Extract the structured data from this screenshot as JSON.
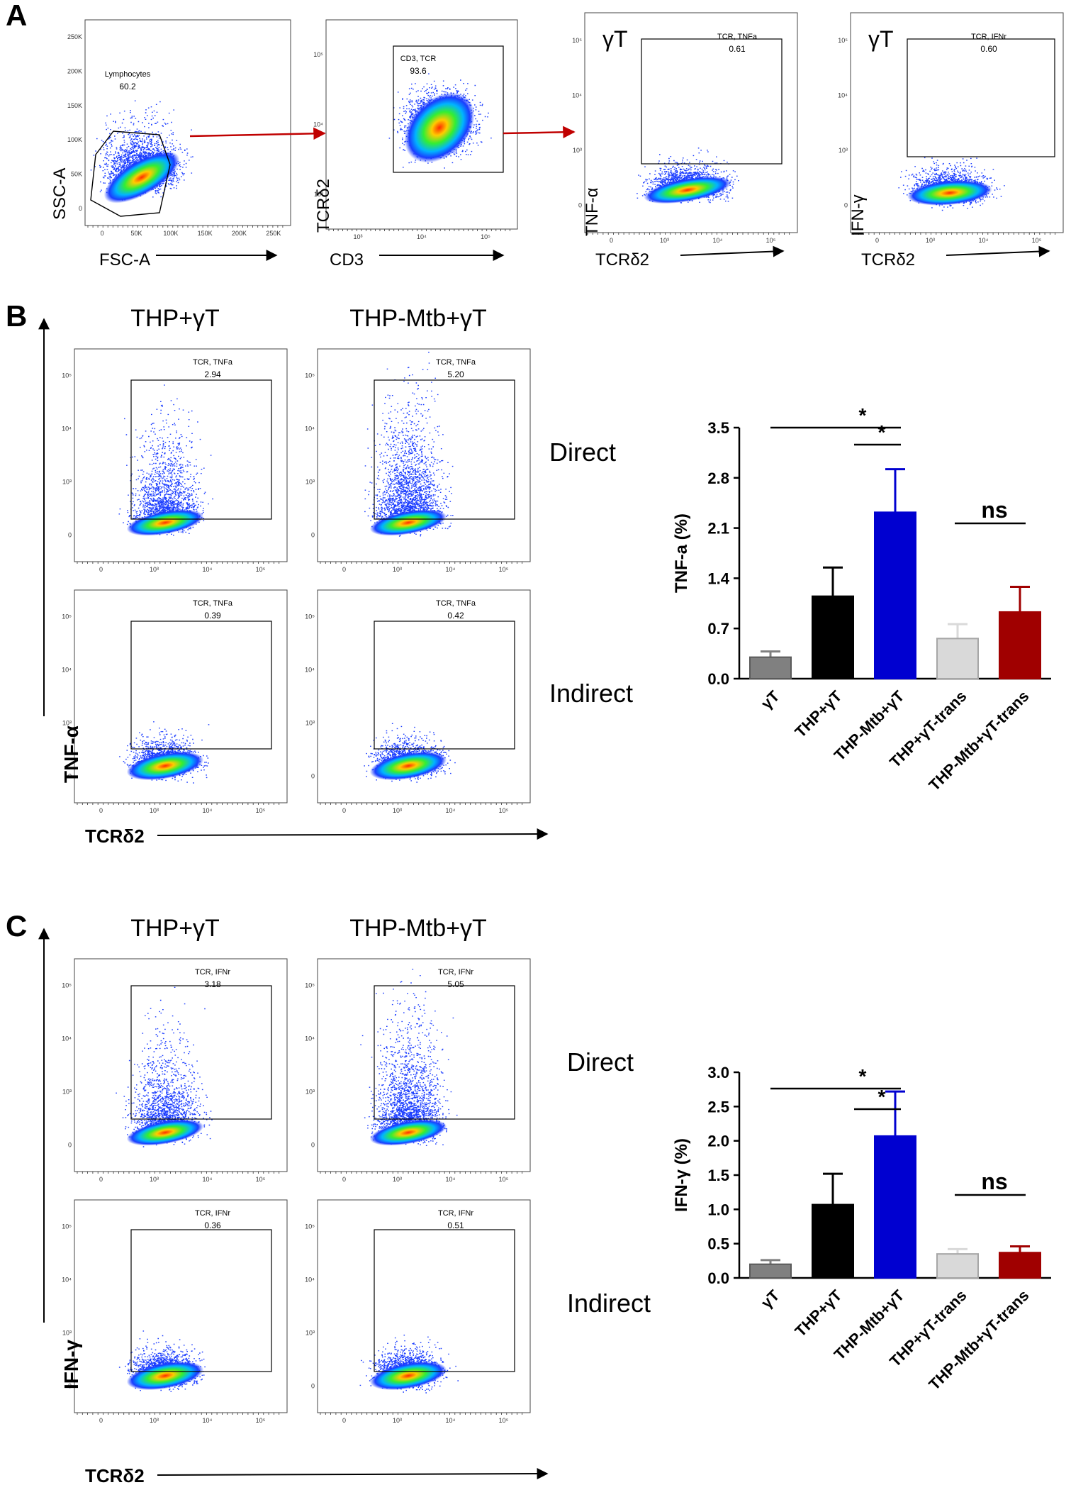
{
  "panel_letters": [
    "A",
    "B",
    "C"
  ],
  "panelA": {
    "plots": [
      {
        "gate_label": "Lymphocytes",
        "gate_value": "60.2",
        "y_label": "SSC-A",
        "x_label": "FSC-A",
        "x_ticks": [
          "0",
          "50K",
          "100K",
          "150K",
          "200K",
          "250K"
        ],
        "y_ticks": [
          "0",
          "50K",
          "100K",
          "150K",
          "200K",
          "250K"
        ]
      },
      {
        "gate_label": "CD3, TCR",
        "gate_value": "93.6",
        "y_label": "TCRδ2",
        "x_label": "CD3",
        "x_ticks": [
          "10³",
          "10⁴",
          "10⁵"
        ],
        "y_ticks": [
          "10³",
          "10⁴",
          "10⁵"
        ]
      },
      {
        "title": "γT",
        "gate_label": "TCR, TNFa",
        "gate_value": "0.61",
        "y_label": "TNF-α",
        "x_label": "TCRδ2",
        "x_ticks": [
          "0",
          "10³",
          "10⁴",
          "10⁵"
        ],
        "y_ticks": [
          "0",
          "10³",
          "10⁴",
          "10⁵"
        ]
      },
      {
        "title": "γT",
        "gate_label": "TCR, IFNr",
        "gate_value": "0.60",
        "y_label": "IFN-γ",
        "x_label": "TCRδ2",
        "x_ticks": [
          "0",
          "10³",
          "10⁴",
          "10⁵"
        ],
        "y_ticks": [
          "0",
          "10³",
          "10⁴",
          "10⁵"
        ]
      }
    ]
  },
  "panelB": {
    "col_titles": [
      "THP+γT",
      "THP-Mtb+γT"
    ],
    "row_labels": [
      "Direct",
      "Indirect"
    ],
    "y_label": "TNF-α",
    "x_label": "TCRδ2",
    "gate_label": "TCR, TNFa",
    "gate_values": [
      "2.94",
      "5.20",
      "0.39",
      "0.42"
    ],
    "x_ticks": [
      "0",
      "10³",
      "10⁴",
      "10⁵"
    ],
    "y_ticks": [
      "0",
      "10³",
      "10⁴",
      "10⁵"
    ]
  },
  "panelC": {
    "col_titles": [
      "THP+γT",
      "THP-Mtb+γT"
    ],
    "row_labels": [
      "Direct",
      "Indirect"
    ],
    "y_label": "IFN-γ",
    "x_label": "TCRδ2",
    "gate_label": "TCR, IFNr",
    "gate_values": [
      "3.18",
      "5.05",
      "0.36",
      "0.51"
    ],
    "x_ticks": [
      "0",
      "10³",
      "10⁴",
      "10⁵"
    ],
    "y_ticks": [
      "0",
      "10³",
      "10⁴",
      "10⁵"
    ]
  },
  "chart_data": [
    {
      "type": "bar",
      "panel": "B",
      "title": "",
      "xlabel": "",
      "ylabel": "TNF-a (%)",
      "ylim": [
        0,
        3.5
      ],
      "yticks": [
        "0.0",
        "0.7",
        "1.4",
        "2.1",
        "2.8",
        "3.5"
      ],
      "categories": [
        "γT",
        "THP+γT",
        "THP-Mtb+γT",
        "THP+γT-trans",
        "THP-Mtb+γT-trans"
      ],
      "values": [
        0.3,
        1.15,
        2.32,
        0.56,
        0.93
      ],
      "errors": [
        0.08,
        0.4,
        0.6,
        0.2,
        0.35
      ],
      "colors": [
        "#808080",
        "#000000",
        "#0000d0",
        "#d9d9d9",
        "#a00000"
      ],
      "significance": [
        {
          "from": 0,
          "to": 2,
          "label": "*"
        },
        {
          "from": 1,
          "to": 2,
          "label": "*"
        },
        {
          "from": 3,
          "to": 4,
          "label": "ns"
        }
      ]
    },
    {
      "type": "bar",
      "panel": "C",
      "title": "",
      "xlabel": "",
      "ylabel": "IFN-γ (%)",
      "ylim": [
        0,
        3.0
      ],
      "yticks": [
        "0.0",
        "0.5",
        "1.0",
        "1.5",
        "2.0",
        "2.5",
        "3.0"
      ],
      "categories": [
        "γT",
        "THP+γT",
        "THP-Mtb+γT",
        "THP+γT-trans",
        "THP-Mtb+γT-trans"
      ],
      "values": [
        0.2,
        1.07,
        2.07,
        0.35,
        0.37
      ],
      "errors": [
        0.06,
        0.45,
        0.65,
        0.07,
        0.09
      ],
      "colors": [
        "#808080",
        "#000000",
        "#0000d0",
        "#d9d9d9",
        "#a00000"
      ],
      "significance": [
        {
          "from": 0,
          "to": 2,
          "label": "*"
        },
        {
          "from": 1,
          "to": 2,
          "label": "*"
        },
        {
          "from": 3,
          "to": 4,
          "label": "ns"
        }
      ]
    }
  ]
}
